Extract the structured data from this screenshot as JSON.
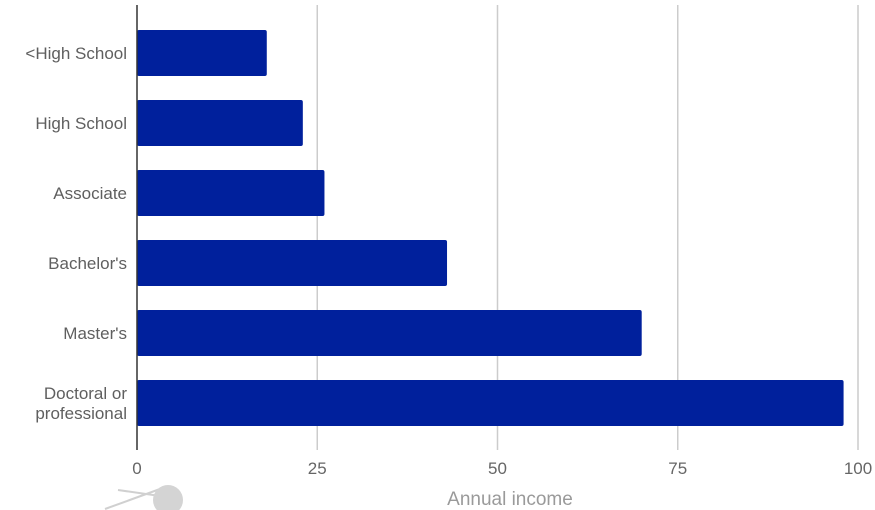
{
  "chart_data": {
    "type": "bar",
    "orientation": "horizontal",
    "categories": [
      "<High School",
      "High School",
      "Associate",
      "Bachelor's",
      "Master's",
      "Doctoral or professional"
    ],
    "category_lines": [
      [
        "<High School"
      ],
      [
        "High School"
      ],
      [
        "Associate"
      ],
      [
        "Bachelor's"
      ],
      [
        "Master's"
      ],
      [
        "Doctoral or",
        "professional"
      ]
    ],
    "values": [
      18,
      23,
      26,
      43,
      70,
      98
    ],
    "xlabel": "Annual income",
    "ylabel": "",
    "xlim": [
      0,
      100
    ],
    "xticks": [
      0,
      25,
      50,
      75,
      100
    ],
    "grid": true,
    "legend": "none",
    "bar_color": "#00209c",
    "grid_color": "#cccccc",
    "axis_color": "#333333"
  }
}
